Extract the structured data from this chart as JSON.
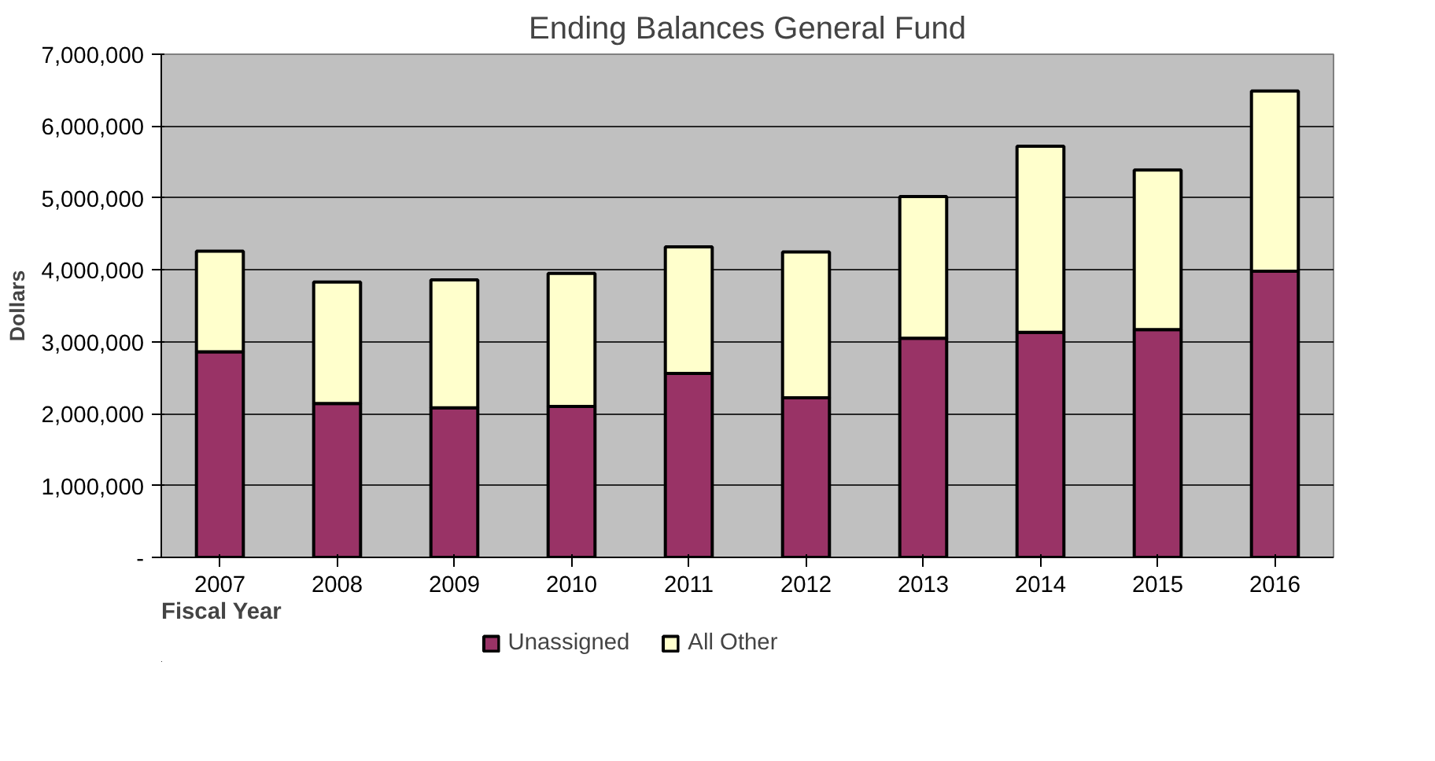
{
  "chart_data": {
    "type": "bar",
    "title": "Ending Balances General Fund",
    "xlabel": "Fiscal Year",
    "ylabel": "Dollars",
    "categories": [
      "2007",
      "2008",
      "2009",
      "2010",
      "2011",
      "2012",
      "2013",
      "2014",
      "2015",
      "2016"
    ],
    "stacked": true,
    "series": [
      {
        "name": "Unassigned",
        "color": "#993366",
        "values": [
          2860000,
          2140000,
          2080000,
          2100000,
          2560000,
          2220000,
          3050000,
          3130000,
          3170000,
          3980000
        ]
      },
      {
        "name": "All Other",
        "color": "#ffffcc",
        "values": [
          1400000,
          1690000,
          1780000,
          1850000,
          1760000,
          2030000,
          1970000,
          2590000,
          2220000,
          2510000
        ]
      }
    ],
    "ylim": [
      0,
      7000000
    ],
    "yticks": [
      {
        "value": 0,
        "label": "-"
      },
      {
        "value": 1000000,
        "label": "1,000,000"
      },
      {
        "value": 2000000,
        "label": "2,000,000"
      },
      {
        "value": 3000000,
        "label": "3,000,000"
      },
      {
        "value": 4000000,
        "label": "4,000,000"
      },
      {
        "value": 5000000,
        "label": "5,000,000"
      },
      {
        "value": 6000000,
        "label": "6,000,000"
      },
      {
        "value": 7000000,
        "label": "7,000,000"
      }
    ],
    "grid": "y",
    "legend": "bottom"
  }
}
